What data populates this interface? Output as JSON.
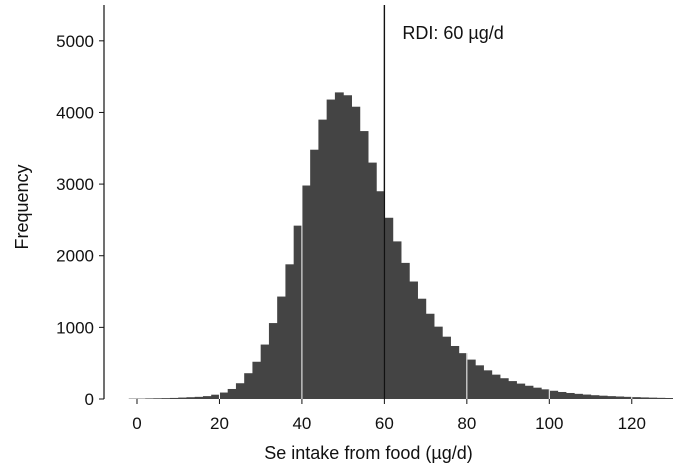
{
  "chart_data": {
    "type": "bar",
    "title": "",
    "xlabel": "Se intake from food (µg/d)",
    "ylabel": "Frequency",
    "xlim": [
      -8,
      130
    ],
    "ylim": [
      0,
      5500
    ],
    "xticks": [
      0,
      20,
      40,
      60,
      80,
      100,
      120
    ],
    "yticks": [
      0,
      1000,
      2000,
      3000,
      4000,
      5000
    ],
    "bin_width": 2,
    "bin_starts": [
      -2,
      0,
      2,
      4,
      6,
      8,
      10,
      12,
      14,
      16,
      18,
      20,
      22,
      24,
      26,
      28,
      30,
      32,
      34,
      36,
      38,
      40,
      42,
      44,
      46,
      48,
      50,
      52,
      54,
      56,
      58,
      60,
      62,
      64,
      66,
      68,
      70,
      72,
      74,
      76,
      78,
      80,
      82,
      84,
      86,
      88,
      90,
      92,
      94,
      96,
      98,
      100,
      102,
      104,
      106,
      108,
      110,
      112,
      114,
      116,
      118,
      120,
      122,
      124,
      126,
      128
    ],
    "values": [
      5,
      5,
      8,
      10,
      12,
      15,
      20,
      25,
      30,
      40,
      60,
      90,
      140,
      220,
      360,
      520,
      760,
      1060,
      1430,
      1880,
      2420,
      2980,
      3480,
      3900,
      4180,
      4280,
      4240,
      4080,
      3740,
      3300,
      2900,
      2530,
      2200,
      1900,
      1640,
      1400,
      1190,
      1010,
      870,
      740,
      640,
      550,
      470,
      400,
      340,
      290,
      250,
      215,
      185,
      158,
      135,
      115,
      98,
      84,
      72,
      62,
      53,
      46,
      40,
      35,
      30,
      26,
      22,
      19,
      16,
      14
    ],
    "bar_color": "#444444",
    "reference_line": {
      "x": 60,
      "label": "RDI: 60 µg/d"
    },
    "grid": false,
    "legend": "none"
  }
}
